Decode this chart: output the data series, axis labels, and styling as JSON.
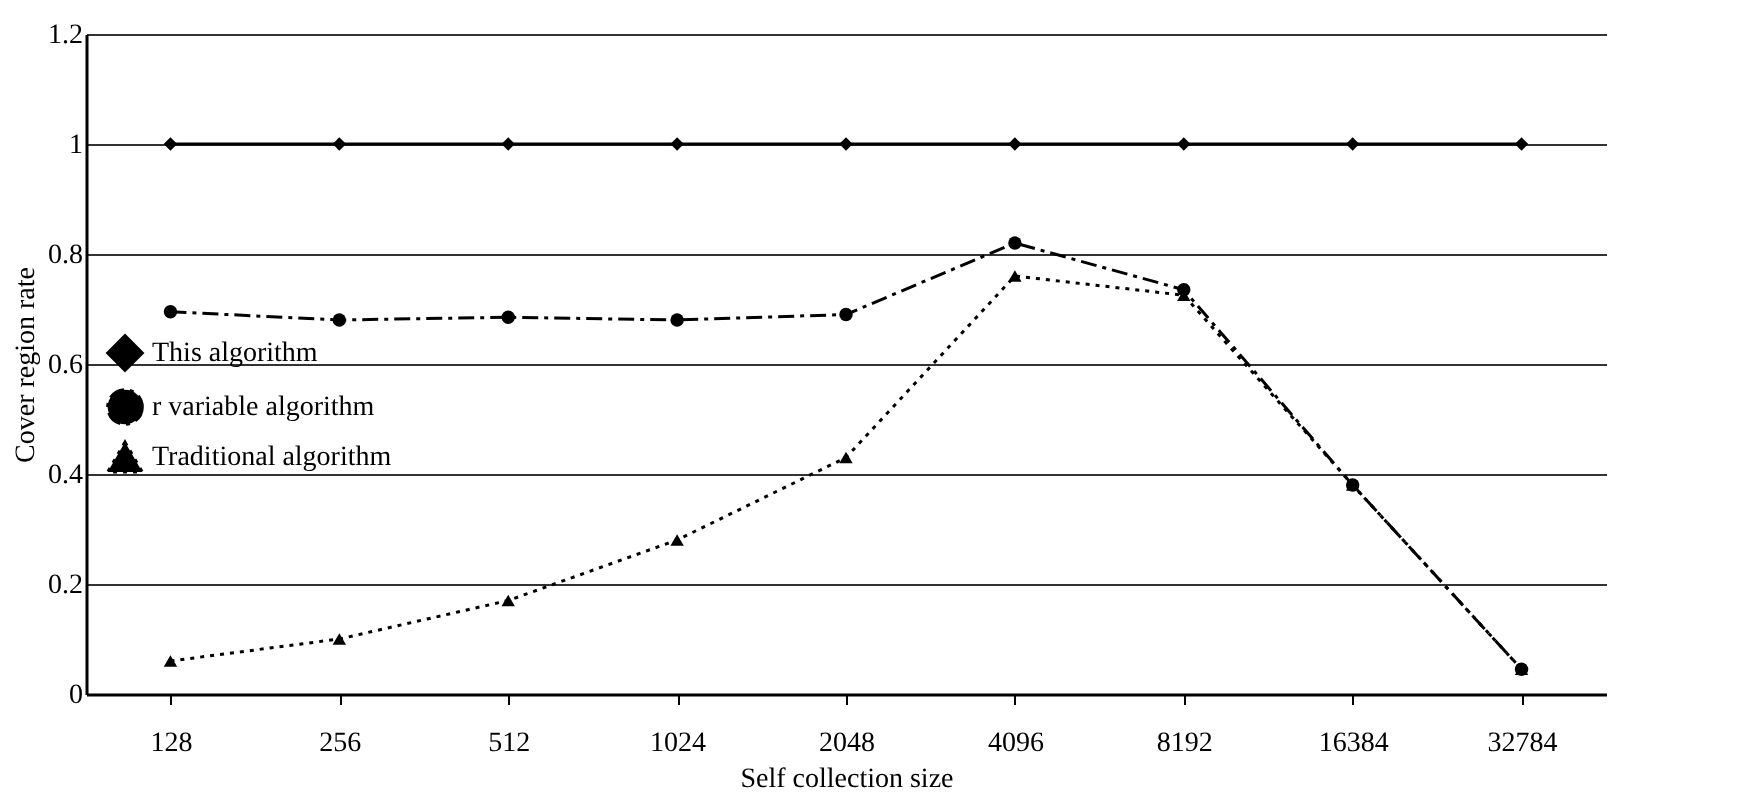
{
  "chart_data": {
    "type": "line",
    "xlabel": "Self collection size",
    "ylabel": "Cover region rate",
    "categories": [
      "128",
      "256",
      "512",
      "1024",
      "2048",
      "4096",
      "8192",
      "16384",
      "32784"
    ],
    "ylim": [
      0,
      1.2
    ],
    "yticks": [
      0,
      0.2,
      0.4,
      0.6,
      0.8,
      1,
      1.2
    ],
    "grid": "y",
    "legend": "left",
    "series": [
      {
        "name": "This algorithm",
        "color": "#000000",
        "marker": "diamond",
        "line_style": "solid",
        "values": [
          1,
          1,
          1,
          1,
          1,
          1,
          1,
          1,
          1
        ]
      },
      {
        "name": "r variable algorithm",
        "color": "#000000",
        "marker": "circle",
        "line_style": "dashdot",
        "values": [
          0.695,
          0.68,
          0.685,
          0.68,
          0.69,
          0.82,
          0.735,
          0.38,
          0.045
        ]
      },
      {
        "name": "Traditional algorithm",
        "color": "#000000",
        "marker": "triangle",
        "line_style": "dotted",
        "values": [
          0.06,
          0.1,
          0.17,
          0.28,
          0.43,
          0.76,
          0.725,
          0.38,
          0.045
        ]
      }
    ]
  }
}
